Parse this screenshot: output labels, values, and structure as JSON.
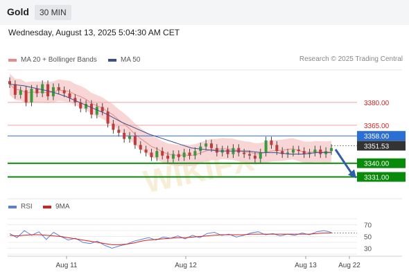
{
  "header": {
    "asset": "Gold",
    "timeframe": "30 MIN"
  },
  "datetime": "Wednesday, August 13, 2025 5:04:30 AM CET",
  "legend_main": [
    {
      "label": "MA 20 + Bollinger Bands",
      "color": "#e88a8a"
    },
    {
      "label": "MA 50",
      "color": "#3a4f8f"
    }
  ],
  "legend_rsi": [
    {
      "label": "RSI",
      "color": "#5b7fd6"
    },
    {
      "label": "9MA",
      "color": "#d62020"
    }
  ],
  "credit": "Research © 2025 Trading Central",
  "chart_data": {
    "type": "line",
    "subtype": "candlestick",
    "price_ylim": [
      3318,
      3400
    ],
    "x_tick_labels": [
      "Aug 11",
      "Aug 12",
      "Aug 13",
      "Aug 22"
    ],
    "levels": [
      {
        "label": "3380.00",
        "value": 3380,
        "color": "#f0a0a0",
        "role": "resistance"
      },
      {
        "label": "3365.00",
        "value": 3365,
        "color": "#f0a0a0",
        "role": "resistance"
      },
      {
        "label": "3358.00",
        "value": 3358,
        "color": "#2b6fd6",
        "role": "pivot"
      },
      {
        "label": "3351.53",
        "value": 3351.53,
        "color": "#333333",
        "role": "last-price"
      },
      {
        "label": "3340.00",
        "value": 3340,
        "color": "#0a8a0a",
        "role": "support"
      },
      {
        "label": "3331.00",
        "value": 3331,
        "color": "#0a8a0a",
        "role": "support"
      }
    ],
    "price_series": [
      3392,
      3385,
      3388,
      3380,
      3389,
      3386,
      3392,
      3384,
      3390,
      3388,
      3386,
      3383,
      3380,
      3376,
      3379,
      3372,
      3377,
      3374,
      3366,
      3362,
      3360,
      3356,
      3358,
      3352,
      3349,
      3347,
      3344,
      3348,
      3345,
      3343,
      3346,
      3344,
      3347,
      3345,
      3348,
      3351,
      3353,
      3350,
      3347,
      3349,
      3346,
      3350,
      3347,
      3346,
      3345,
      3343,
      3347,
      3355,
      3352,
      3348,
      3346,
      3347,
      3349,
      3348,
      3346,
      3347,
      3349,
      3346,
      3348,
      3350
    ],
    "ma50_series": [
      3392,
      3391,
      3389,
      3387,
      3384,
      3380,
      3376,
      3372,
      3367,
      3363,
      3359,
      3356,
      3353,
      3350,
      3349,
      3348,
      3348,
      3348,
      3347,
      3347,
      3346,
      3346,
      3347,
      3347
    ],
    "forecast_target": 3331,
    "rsi_ylim": [
      20,
      80
    ],
    "rsi_ticks": [
      "70",
      "50",
      "30"
    ],
    "rsi_series": [
      55,
      48,
      60,
      52,
      58,
      45,
      57,
      50,
      44,
      47,
      40,
      38,
      42,
      35,
      30,
      34,
      37,
      42,
      45,
      48,
      44,
      49,
      47,
      51,
      46,
      52,
      48,
      55,
      57,
      52,
      54,
      49,
      52,
      56,
      58,
      53,
      55,
      51,
      54,
      52,
      56,
      53,
      58,
      60,
      57
    ],
    "rsi_ma9_series": [
      52,
      51,
      52,
      53,
      53,
      52,
      51,
      50,
      48,
      46,
      44,
      42,
      40,
      38,
      36,
      36,
      37,
      39,
      42,
      44,
      45,
      46,
      47,
      48,
      48,
      49,
      50,
      51,
      52,
      53,
      53,
      53,
      53,
      54,
      54,
      54,
      54,
      54,
      54,
      54,
      54,
      54,
      55,
      56,
      56
    ],
    "rsi_projection": 56
  }
}
